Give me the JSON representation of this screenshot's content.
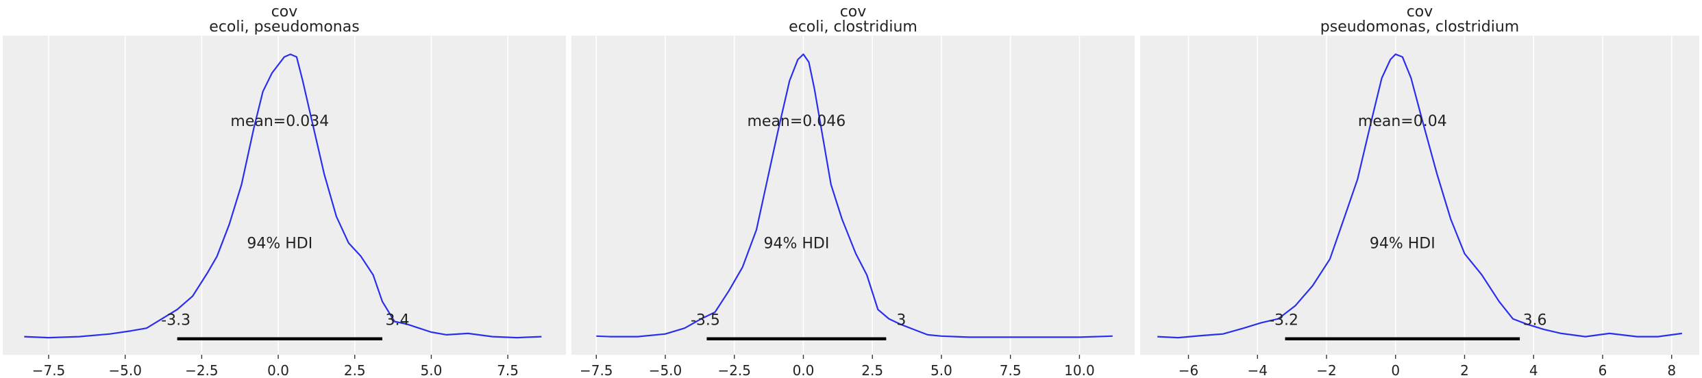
{
  "chart_data": [
    {
      "type": "line",
      "title": "cov",
      "subtitle": "ecoli, pseudomonas",
      "xlabel": "",
      "ylabel": "",
      "xlim": [
        -9.0,
        9.4
      ],
      "ylim": [
        -0.006,
        0.114
      ],
      "xticks": [
        -7.5,
        -5.0,
        -2.5,
        0.0,
        2.5,
        5.0,
        7.5
      ],
      "xtick_labels": [
        "−7.5",
        "−5.0",
        "−2.5",
        "0.0",
        "2.5",
        "5.0",
        "7.5"
      ],
      "grid": true,
      "series": [
        {
          "color": "#2a2eec",
          "x": [
            -8.3,
            -7.5,
            -6.5,
            -5.5,
            -4.8,
            -4.3,
            -3.8,
            -3.3,
            -2.8,
            -2.3,
            -2.0,
            -1.6,
            -1.2,
            -0.8,
            -0.5,
            -0.2,
            0.0,
            0.2,
            0.4,
            0.6,
            0.8,
            1.1,
            1.5,
            1.9,
            2.3,
            2.7,
            3.1,
            3.4,
            3.8,
            4.2,
            4.6,
            5.0,
            5.5,
            6.2,
            7.0,
            7.8,
            8.6
          ],
          "y": [
            0.0008,
            0.0004,
            0.0008,
            0.0018,
            0.003,
            0.004,
            0.0075,
            0.011,
            0.016,
            0.025,
            0.031,
            0.043,
            0.058,
            0.079,
            0.093,
            0.1,
            0.103,
            0.106,
            0.107,
            0.106,
            0.097,
            0.082,
            0.062,
            0.046,
            0.036,
            0.031,
            0.024,
            0.014,
            0.0065,
            0.0055,
            0.004,
            0.0025,
            0.0015,
            0.002,
            0.0008,
            0.0004,
            0.0008
          ]
        }
      ],
      "annotations": {
        "mean_label": "mean=0.034",
        "hdi_label": "94% HDI",
        "hdi_low_label": "-3.3",
        "hdi_high_label": "3.4",
        "hdi_interval": [
          -3.3,
          3.4
        ]
      }
    },
    {
      "type": "line",
      "title": "cov",
      "subtitle": "ecoli, clostridium",
      "xlabel": "",
      "ylabel": "",
      "xlim": [
        -8.4,
        12.0
      ],
      "ylim": [
        -0.006,
        0.114
      ],
      "xticks": [
        -7.5,
        -5.0,
        -2.5,
        0.0,
        2.5,
        5.0,
        7.5,
        10.0
      ],
      "xtick_labels": [
        "−7.5",
        "−5.0",
        "−2.5",
        "0.0",
        "2.5",
        "5.0",
        "7.5",
        "10.0"
      ],
      "grid": true,
      "series": [
        {
          "color": "#2a2eec",
          "x": [
            -7.5,
            -7.0,
            -6.0,
            -5.0,
            -4.3,
            -3.7,
            -3.2,
            -2.7,
            -2.2,
            -1.7,
            -1.3,
            -0.9,
            -0.5,
            -0.2,
            0.0,
            0.2,
            0.4,
            0.7,
            1.0,
            1.4,
            1.9,
            2.3,
            2.7,
            3.1,
            3.5,
            4.0,
            4.5,
            5.0,
            6.0,
            7.0,
            8.0,
            9.0,
            10.0,
            11.2
          ],
          "y": [
            0.001,
            0.0008,
            0.0008,
            0.0018,
            0.004,
            0.0075,
            0.01,
            0.018,
            0.027,
            0.041,
            0.06,
            0.079,
            0.097,
            0.105,
            0.107,
            0.104,
            0.094,
            0.076,
            0.058,
            0.045,
            0.032,
            0.024,
            0.011,
            0.0075,
            0.0055,
            0.0035,
            0.0015,
            0.001,
            0.0006,
            0.0006,
            0.0006,
            0.0006,
            0.0006,
            0.001
          ]
        }
      ],
      "annotations": {
        "mean_label": "mean=0.046",
        "hdi_label": "94% HDI",
        "hdi_low_label": "-3.5",
        "hdi_high_label": "3",
        "hdi_interval": [
          -3.5,
          3.0
        ]
      }
    },
    {
      "type": "line",
      "title": "cov",
      "subtitle": "pseudomonas, clostridium",
      "xlabel": "",
      "ylabel": "",
      "xlim": [
        -7.4,
        8.8
      ],
      "ylim": [
        -0.006,
        0.114
      ],
      "xticks": [
        -6,
        -4,
        -2,
        0,
        2,
        4,
        6,
        8
      ],
      "xtick_labels": [
        "−6",
        "−4",
        "−2",
        "0",
        "2",
        "4",
        "6",
        "8"
      ],
      "grid": true,
      "series": [
        {
          "color": "#2a2eec",
          "x": [
            -6.9,
            -6.3,
            -5.6,
            -5.0,
            -4.4,
            -3.9,
            -3.4,
            -2.9,
            -2.4,
            -1.9,
            -1.5,
            -1.1,
            -0.7,
            -0.4,
            -0.15,
            0.0,
            0.2,
            0.45,
            0.8,
            1.2,
            1.6,
            2.0,
            2.5,
            3.0,
            3.4,
            3.8,
            4.3,
            4.8,
            5.5,
            6.2,
            7.0,
            7.6,
            8.3
          ],
          "y": [
            0.0008,
            0.0004,
            0.0012,
            0.0018,
            0.004,
            0.006,
            0.0075,
            0.0125,
            0.02,
            0.03,
            0.045,
            0.06,
            0.082,
            0.098,
            0.105,
            0.107,
            0.106,
            0.098,
            0.081,
            0.062,
            0.045,
            0.032,
            0.024,
            0.014,
            0.0075,
            0.0055,
            0.0035,
            0.002,
            0.0008,
            0.002,
            0.0008,
            0.0008,
            0.002
          ]
        }
      ],
      "annotations": {
        "mean_label": "mean=0.04",
        "hdi_label": "94% HDI",
        "hdi_low_label": "-3.2",
        "hdi_high_label": "3.6",
        "hdi_interval": [
          -3.2,
          3.6
        ]
      }
    }
  ]
}
